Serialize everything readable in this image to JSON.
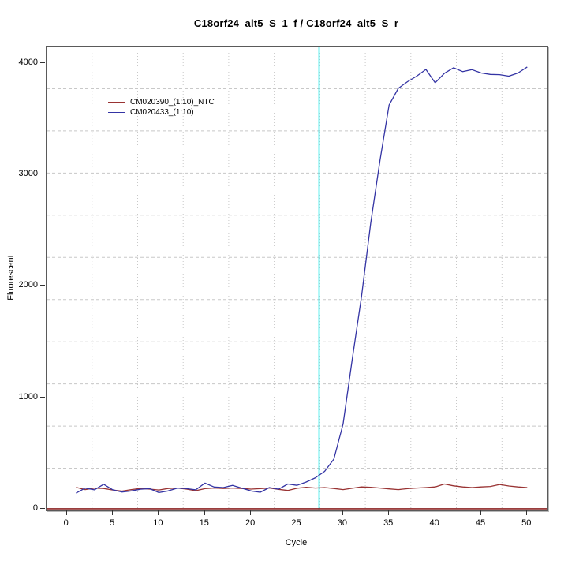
{
  "page_title": "C18orf24_alt5_S_1_f / C18orf24_alt5_S_r",
  "chart_data": {
    "type": "line",
    "title": "C18orf24_alt5_S_1_f / C18orf24_alt5_S_r",
    "xlabel": "Cycle",
    "ylabel": "Fluorescent",
    "x_ticks": [
      0,
      5,
      10,
      15,
      20,
      25,
      30,
      35,
      40,
      45,
      50
    ],
    "y_ticks": [
      0,
      1000,
      2000,
      3000,
      4000
    ],
    "xlim": [
      -2.2,
      52.2
    ],
    "ylim": [
      -15,
      4145
    ],
    "grid": {
      "nx": 11,
      "ny": 11,
      "color": "#c8c8c8",
      "vertical_style": "dotted",
      "horizontal_style": "dashed"
    },
    "legend_position": "top-left",
    "threshold_line": {
      "x": 27.4,
      "color": "#00e6e6",
      "orientation": "vertical"
    },
    "baseline_line": {
      "y": 0,
      "color": "#8b2222"
    },
    "cycles_start": 1,
    "cycles_end": 50,
    "series": [
      {
        "name": "CM020390_(1:10)_NTC",
        "color": "#993333",
        "values": [
          192,
          172,
          185,
          182,
          168,
          158,
          172,
          182,
          176,
          168,
          182,
          186,
          176,
          162,
          180,
          186,
          182,
          186,
          182,
          176,
          180,
          186,
          174,
          164,
          184,
          192,
          186,
          190,
          182,
          172,
          184,
          196,
          192,
          186,
          178,
          172,
          180,
          186,
          190,
          196,
          222,
          206,
          196,
          190,
          196,
          200,
          218,
          204,
          196,
          190
        ]
      },
      {
        "name": "CM020433_(1:10)",
        "color": "#3434a4",
        "values": [
          140,
          185,
          170,
          220,
          170,
          150,
          160,
          175,
          180,
          145,
          160,
          185,
          180,
          170,
          230,
          195,
          190,
          210,
          185,
          160,
          148,
          190,
          175,
          222,
          210,
          240,
          278,
          335,
          445,
          760,
          1340,
          1900,
          2560,
          3120,
          3620,
          3770,
          3830,
          3880,
          3940,
          3820,
          3905,
          3955,
          3920,
          3938,
          3908,
          3895,
          3893,
          3880,
          3908,
          3962
        ]
      }
    ]
  }
}
